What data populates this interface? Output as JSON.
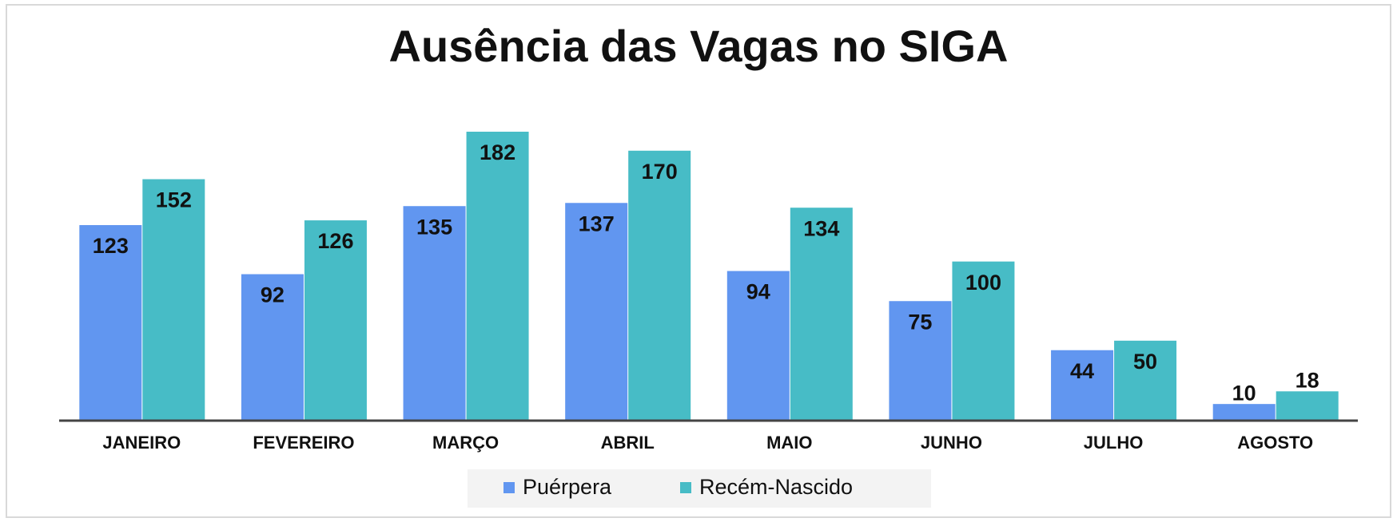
{
  "chart_data": {
    "type": "bar",
    "title": "Ausência das Vagas no SIGA",
    "categories": [
      "JANEIRO",
      "FEVEREIRO",
      "MARÇO",
      "ABRIL",
      "MAIO",
      "JUNHO",
      "JULHO",
      "AGOSTO"
    ],
    "series": [
      {
        "name": "Puérpera",
        "color": "#6196f0",
        "values": [
          123,
          92,
          135,
          137,
          94,
          75,
          44,
          10
        ]
      },
      {
        "name": "Recém-Nascido",
        "color": "#47bcc6",
        "values": [
          152,
          126,
          182,
          170,
          134,
          100,
          50,
          18
        ]
      }
    ],
    "legend": "bottom"
  }
}
